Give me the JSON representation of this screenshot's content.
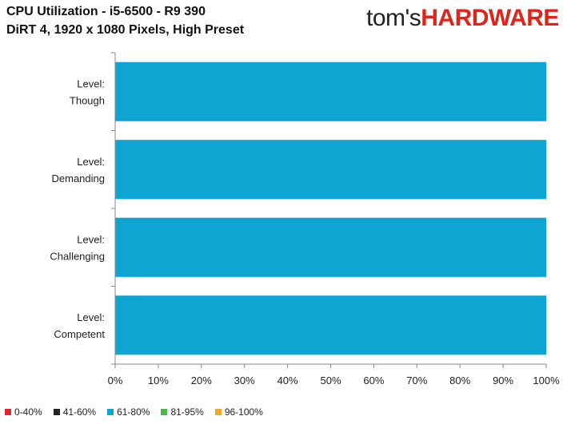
{
  "header": {
    "title": "CPU Utilization - i5-6500 - R9 390",
    "subtitle": "DiRT 4, 1920 x 1080 Pixels, High Preset"
  },
  "logo": {
    "part1": "tom's",
    "part2": "HARDWARE",
    "color_red": "#e2231a"
  },
  "chart_data": {
    "type": "bar",
    "orientation": "horizontal",
    "stacked": true,
    "categories": [
      "Level:\nThough",
      "Level:\nDemanding",
      "Level:\nChallenging",
      "Level:\nCompetent"
    ],
    "series": [
      {
        "name": "0-40%",
        "color": "#e3262b",
        "values": [
          0,
          0,
          0,
          0
        ]
      },
      {
        "name": "41-60%",
        "color": "#222222",
        "values": [
          0,
          0,
          0,
          0
        ]
      },
      {
        "name": "61-80%",
        "color": "#0ea5d2",
        "values": [
          100,
          100,
          100,
          100
        ]
      },
      {
        "name": "81-95%",
        "color": "#4cb748",
        "values": [
          0,
          0,
          0,
          0
        ]
      },
      {
        "name": "96-100%",
        "color": "#f5a623",
        "values": [
          0,
          0,
          0,
          0
        ]
      }
    ],
    "xlim": [
      0,
      100
    ],
    "xticks": [
      "0%",
      "10%",
      "20%",
      "30%",
      "40%",
      "50%",
      "60%",
      "70%",
      "80%",
      "90%",
      "100%"
    ],
    "grid": false,
    "legend_position": "bottom-left"
  }
}
